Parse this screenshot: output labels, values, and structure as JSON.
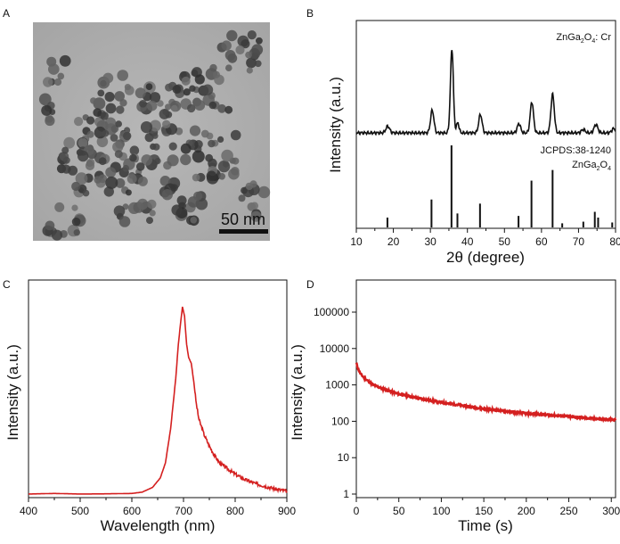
{
  "panel_labels": [
    "A",
    "B",
    "C",
    "D"
  ],
  "tem": {
    "scale_bar_label": "50 nm"
  },
  "chart_data": [
    {
      "panel": "B",
      "type": "line",
      "xlabel": "2θ (degree)",
      "ylabel": "Intensity (a.u.)",
      "xlim": [
        10,
        80
      ],
      "xticks": [
        10,
        20,
        30,
        40,
        50,
        60,
        70,
        80
      ],
      "sample_label_main": "ZnGa",
      "sample_label_sub1": "2",
      "sample_label_mid": "O",
      "sample_label_sub2": "4",
      "sample_label_tail": ": Cr",
      "reference_label": "JCPDS:38-1240",
      "reference_formula_main": "ZnGa",
      "reference_formula_sub1": "2",
      "reference_formula_mid": "O",
      "reference_formula_sub2": "4",
      "xrd_peaks": [
        {
          "x": 18.5,
          "height": 0.08,
          "width": 0.5
        },
        {
          "x": 30.5,
          "height": 0.27,
          "width": 0.45
        },
        {
          "x": 35.8,
          "height": 1.0,
          "width": 0.4
        },
        {
          "x": 37.4,
          "height": 0.12,
          "width": 0.35
        },
        {
          "x": 43.5,
          "height": 0.22,
          "width": 0.45
        },
        {
          "x": 53.9,
          "height": 0.11,
          "width": 0.45
        },
        {
          "x": 57.4,
          "height": 0.37,
          "width": 0.45
        },
        {
          "x": 63.0,
          "height": 0.46,
          "width": 0.45
        },
        {
          "x": 71.3,
          "height": 0.04,
          "width": 0.5
        },
        {
          "x": 74.7,
          "height": 0.1,
          "width": 0.5
        },
        {
          "x": 79.5,
          "height": 0.05,
          "width": 0.5
        }
      ],
      "reference_lines": [
        {
          "x": 18.4,
          "height": 0.12
        },
        {
          "x": 30.3,
          "height": 0.34
        },
        {
          "x": 35.7,
          "height": 1.0
        },
        {
          "x": 37.3,
          "height": 0.17
        },
        {
          "x": 43.4,
          "height": 0.29
        },
        {
          "x": 53.8,
          "height": 0.14
        },
        {
          "x": 57.3,
          "height": 0.57
        },
        {
          "x": 63.0,
          "height": 0.7
        },
        {
          "x": 65.6,
          "height": 0.05
        },
        {
          "x": 71.3,
          "height": 0.07
        },
        {
          "x": 74.4,
          "height": 0.19
        },
        {
          "x": 75.3,
          "height": 0.12
        },
        {
          "x": 79.1,
          "height": 0.06
        }
      ]
    },
    {
      "panel": "C",
      "type": "line",
      "xlabel": "Wavelength (nm)",
      "ylabel": "Intensity (a.u.)",
      "xlim": [
        400,
        900
      ],
      "xticks": [
        400,
        500,
        600,
        700,
        800,
        900
      ],
      "line_color": "#d42020",
      "x": [
        400,
        450,
        500,
        550,
        600,
        620,
        640,
        655,
        665,
        675,
        685,
        690,
        695,
        698,
        702,
        706,
        710,
        715,
        720,
        725,
        730,
        740,
        750,
        760,
        770,
        780,
        800,
        820,
        840,
        860,
        880,
        900
      ],
      "y": [
        0.005,
        0.008,
        0.005,
        0.006,
        0.008,
        0.015,
        0.04,
        0.09,
        0.17,
        0.35,
        0.62,
        0.8,
        0.93,
        1.0,
        0.95,
        0.8,
        0.73,
        0.7,
        0.6,
        0.48,
        0.4,
        0.32,
        0.26,
        0.21,
        0.17,
        0.15,
        0.11,
        0.08,
        0.06,
        0.045,
        0.03,
        0.02
      ]
    },
    {
      "panel": "D",
      "type": "line",
      "xlabel": "Time (s)",
      "ylabel": "Intensity (a.u.)",
      "y_scale": "log",
      "xlim": [
        0,
        305
      ],
      "ylim": [
        1,
        100000
      ],
      "xticks": [
        0,
        50,
        100,
        150,
        200,
        250,
        300
      ],
      "yticks": [
        1,
        10,
        100,
        1000,
        10000,
        100000
      ],
      "ytick_labels": [
        "1",
        "10",
        "100",
        "1000",
        "10000",
        "100000"
      ],
      "line_color": "#d42020",
      "x": [
        0,
        2,
        5,
        10,
        20,
        30,
        50,
        75,
        100,
        125,
        150,
        175,
        200,
        225,
        250,
        275,
        300,
        305
      ],
      "y": [
        4000,
        2800,
        2000,
        1500,
        1000,
        800,
        560,
        420,
        330,
        270,
        220,
        190,
        165,
        150,
        135,
        120,
        110,
        108
      ]
    }
  ]
}
